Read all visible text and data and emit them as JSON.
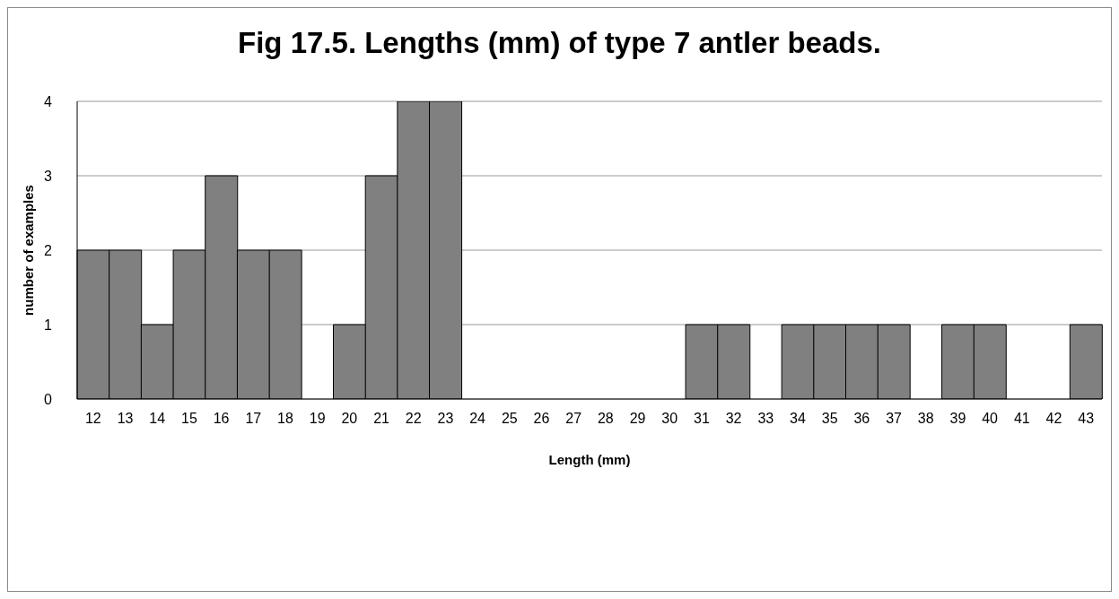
{
  "chart_data": {
    "type": "bar",
    "title": "Fig 17.5. Lengths (mm) of type 7 antler beads.",
    "xlabel": "Length (mm)",
    "ylabel": "number of examples",
    "categories": [
      "12",
      "13",
      "14",
      "15",
      "16",
      "17",
      "18",
      "19",
      "20",
      "21",
      "22",
      "23",
      "24",
      "25",
      "26",
      "27",
      "28",
      "29",
      "30",
      "31",
      "32",
      "33",
      "34",
      "35",
      "36",
      "37",
      "38",
      "39",
      "40",
      "41",
      "42",
      "43"
    ],
    "values": [
      2,
      2,
      1,
      2,
      3,
      2,
      2,
      0,
      1,
      3,
      4,
      4,
      0,
      0,
      0,
      0,
      0,
      0,
      0,
      1,
      1,
      0,
      1,
      1,
      1,
      1,
      0,
      1,
      1,
      0,
      0,
      1
    ],
    "color": "#808080",
    "ylim": [
      0,
      4
    ],
    "yticks": [
      0,
      1,
      2,
      3,
      4
    ],
    "grid": "y"
  }
}
